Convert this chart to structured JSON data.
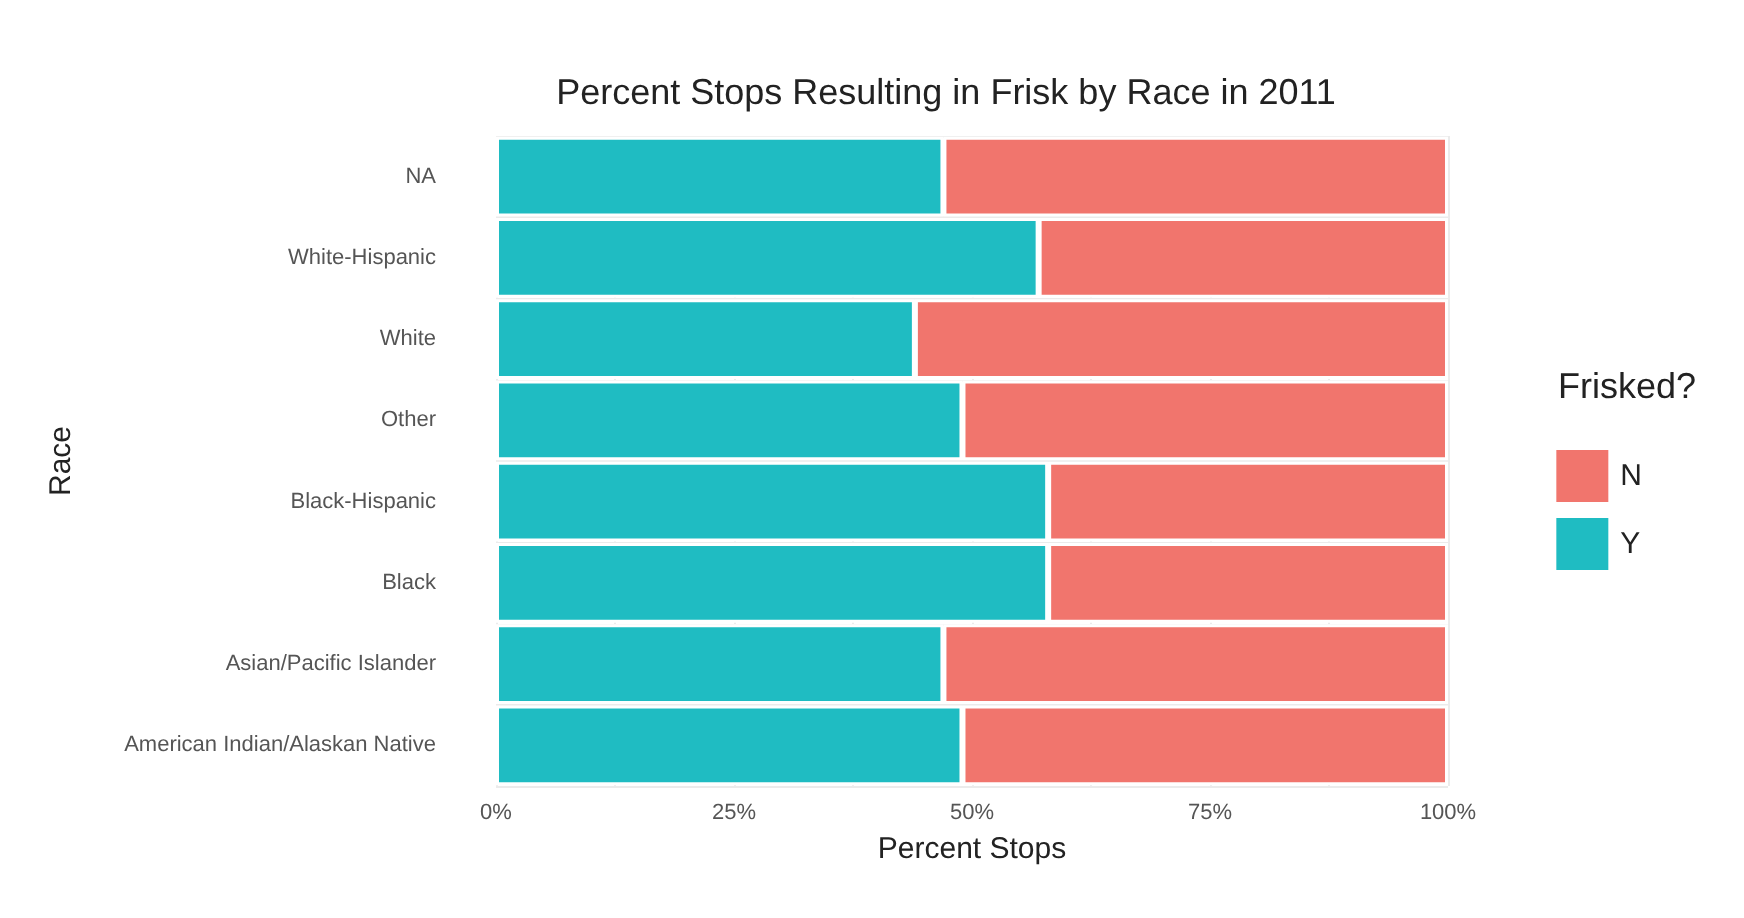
{
  "chart_data": {
    "type": "bar",
    "orientation": "horizontal",
    "stacked": true,
    "title": "Percent Stops Resulting in Frisk by Race in 2011",
    "xlabel": "Percent Stops",
    "ylabel": "Race",
    "legend_title": "Frisked?",
    "legend": "right",
    "grid": true,
    "categories": [
      "NA",
      "White-Hispanic",
      "White",
      "Other",
      "Black-Hispanic",
      "Black",
      "Asian/Pacific Islander",
      "American Indian/Alaskan Native"
    ],
    "series": [
      {
        "name": "Y",
        "color": "#1fbcc2",
        "values": [
          47,
          57,
          44,
          49,
          58,
          58,
          47,
          49
        ]
      },
      {
        "name": "N",
        "color": "#f1756d",
        "values": [
          53,
          43,
          56,
          51,
          42,
          42,
          53,
          51
        ]
      }
    ],
    "xlim": [
      0,
      100
    ],
    "xticks": [
      {
        "value": 0,
        "label": "0%"
      },
      {
        "value": 12.5,
        "label": null
      },
      {
        "value": 25,
        "label": "25%"
      },
      {
        "value": 37.5,
        "label": null
      },
      {
        "value": 50,
        "label": "50%"
      },
      {
        "value": 62.5,
        "label": null
      },
      {
        "value": 75,
        "label": "75%"
      },
      {
        "value": 87.5,
        "label": null
      },
      {
        "value": 100,
        "label": "100%"
      }
    ]
  }
}
